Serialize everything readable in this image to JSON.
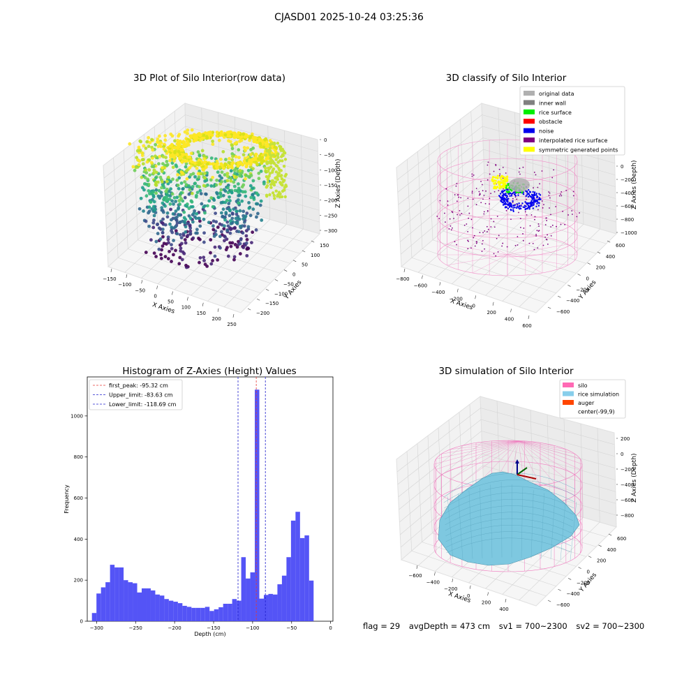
{
  "figure": {
    "suptitle": "CJASD01 2025-10-24 03:25:36",
    "status": {
      "flag": "flag = 29",
      "avg_depth": "avgDepth = 473 cm",
      "sv1": "sv1 = 700~2300",
      "sv2": "sv2 = 700~2300"
    }
  },
  "colors": {
    "hist_bar": "#4b4bf5",
    "first_peak_line": "#e53935",
    "limit_line": "#2020cc",
    "silo_wire": "#f07cbf",
    "rice_surface": "#7ec8e0",
    "grey_pane": "#f2f2f2"
  },
  "chart_data": [
    {
      "type": "scatter",
      "projection": "3d",
      "title": "3D Plot of Silo Interior(row data)",
      "xlabel": "X Axies",
      "ylabel": "Y Axies",
      "zlabel": "Z Axies (Depth)",
      "xticks": [
        "−150",
        "−100",
        "−50",
        "0",
        "50",
        "100",
        "150",
        "200",
        "250"
      ],
      "yticks": [
        "−200",
        "−150",
        "−100",
        "−50",
        "0",
        "50",
        "100",
        "150"
      ],
      "zticks": [
        "0",
        "−50",
        "−100",
        "−150",
        "−200",
        "−250",
        "−300"
      ],
      "colormap": "viridis",
      "grid": true
    },
    {
      "type": "scatter",
      "projection": "3d",
      "title": "3D classify of Silo Interior",
      "xlabel": "X Axies",
      "ylabel": "Y Axies",
      "zlabel": "Z Axies (Depth)",
      "xticks": [
        "−800",
        "−600",
        "−400",
        "−200",
        "0",
        "200",
        "400",
        "600"
      ],
      "yticks": [
        "−600",
        "−400",
        "−200",
        "0",
        "200",
        "400",
        "600"
      ],
      "zticks": [
        "0",
        "−200",
        "−400",
        "−600",
        "−800",
        "−1000"
      ],
      "legend": {
        "position": "upper-right",
        "entries": [
          {
            "label": "original data",
            "color": "#b0b0b0"
          },
          {
            "label": "inner wall",
            "color": "#808080"
          },
          {
            "label": "rice surface",
            "color": "#00ee00"
          },
          {
            "label": "obstacle",
            "color": "#ff0000"
          },
          {
            "label": "noise",
            "color": "#0000ee"
          },
          {
            "label": "interpolated rice surface",
            "color": "#800080"
          },
          {
            "label": "symmetric generated points",
            "color": "#ffff00"
          }
        ]
      },
      "grid": true
    },
    {
      "type": "bar",
      "title": "Histogram of Z-Axies (Height) Values",
      "xlabel": "Depth (cm)",
      "ylabel": "Frequency",
      "xlim": [
        -312,
        3
      ],
      "ylim": [
        0,
        1190
      ],
      "xticks": [
        -300,
        -250,
        -200,
        -150,
        -100,
        -50,
        0
      ],
      "xtick_labels": [
        "−300",
        "−250",
        "−200",
        "−150",
        "−100",
        "−50",
        "0"
      ],
      "yticks": [
        0,
        200,
        400,
        600,
        800,
        1000
      ],
      "yticks_labels": [
        "0",
        "200",
        "400",
        "600",
        "800",
        "1000"
      ],
      "bin_start": -306,
      "bin_width": 5.8,
      "values": [
        40,
        135,
        165,
        190,
        275,
        262,
        262,
        200,
        190,
        185,
        140,
        160,
        160,
        150,
        130,
        125,
        108,
        100,
        95,
        88,
        75,
        70,
        65,
        65,
        65,
        70,
        50,
        58,
        68,
        85,
        85,
        108,
        100,
        312,
        208,
        238,
        1128,
        110,
        128,
        133,
        130,
        180,
        222,
        312,
        490,
        533,
        405,
        418,
        198
      ],
      "vlines": [
        {
          "label": "first_peak: -95.32 cm",
          "x": -95.32,
          "role": "first_peak_line"
        },
        {
          "label": "Upper_limit: -83.63 cm",
          "x": -83.63,
          "role": "limit_line"
        },
        {
          "label": "Lower_limit: -118.69 cm",
          "x": -118.69,
          "role": "limit_line"
        }
      ],
      "legend": {
        "position": "upper-left"
      },
      "grid": false
    },
    {
      "type": "area",
      "projection": "3d",
      "title": "3D simulation of Silo Interior",
      "xlabel": "X Axies",
      "ylabel": "Y Axies",
      "zlabel": "Z Axies (Depth)",
      "xticks": [
        "−600",
        "−400",
        "−200",
        "0",
        "200",
        "400"
      ],
      "yticks": [
        "−600",
        "−400",
        "−200",
        "0",
        "200",
        "400",
        "600"
      ],
      "zticks": [
        "200",
        "0",
        "−200",
        "−400",
        "−600",
        "−800"
      ],
      "legend": {
        "position": "upper-right",
        "entries": [
          {
            "label": "silo",
            "color": "#ff69b4"
          },
          {
            "label": "rice simulation",
            "color": "#87ceeb"
          },
          {
            "label": "auger",
            "color": "#ff4500"
          },
          {
            "label": "center(-99,9)",
            "color": "none"
          }
        ]
      },
      "grid": true
    }
  ]
}
